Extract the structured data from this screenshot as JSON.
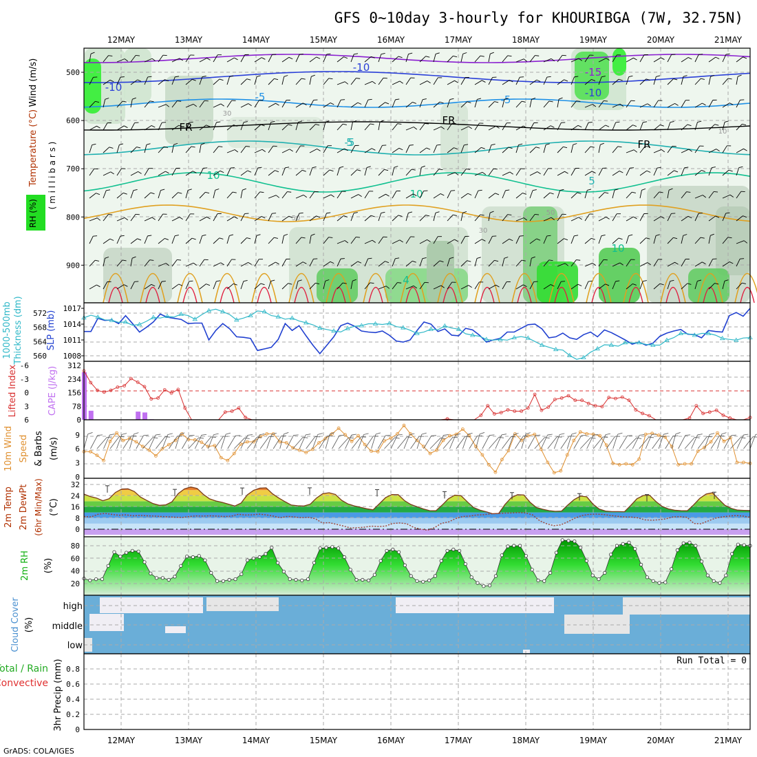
{
  "title": "GFS 0~10day 3-hourly for KHOURIBGA (7W, 32.75N)",
  "footer": "GrADS: COLA/IGES",
  "run_total_label": "Run Total = 0",
  "dates": [
    "12MAY",
    "13MAY",
    "14MAY",
    "15MAY",
    "16MAY",
    "17MAY",
    "18MAY",
    "19MAY",
    "20MAY",
    "21MAY"
  ],
  "colors": {
    "grid": "#aaaaaa",
    "temp_purple": "#8a1fd0",
    "temp_blue": "#2a3fd8",
    "temp_cyan": "#1e90e6",
    "temp_teal": "#20b0b0",
    "temp_green": "#10c090",
    "temp_orange": "#e0a020",
    "temp_red": "#e02040",
    "rh_green": "#22dd22",
    "slp": "#2040d0",
    "thickness": "#30b8c8",
    "lifted": "#d83030",
    "cape": "#c070f0",
    "wind": "#e09030",
    "dew": "#a04030",
    "rh2m": "#10b010",
    "cloud": "#6aaed8"
  },
  "panel_labels": {
    "upper": {
      "wind": "Wind (m/s)",
      "temp": "Temperature (°C)",
      "rh": "RH (%)",
      "pressure": "( m i l l i b a r s )"
    },
    "slp": {
      "thickness1": "1000-500mb",
      "thickness2": "Thickness (dm)",
      "slp": "SLP (mb)"
    },
    "cape": {
      "lifted": "Lifted Index",
      "cape": "CAPE (J/kg)"
    },
    "wind10": {
      "l1": "10m Wind",
      "l2": "Speed",
      "l3": "& Barbs",
      "unit": "(m/s)"
    },
    "temp2": {
      "l1": "2m Temp",
      "l2": "2m DewPt",
      "l3": "(6hr Min/Max)",
      "unit": "(°C)"
    },
    "rh2": {
      "l1": "2m RH",
      "unit": "(%)"
    },
    "cloud": {
      "l1": "Cloud Cover",
      "unit": "(%)",
      "high": "high",
      "middle": "middle",
      "low": "low"
    },
    "precip": {
      "l1": "Total / Rain",
      "l2": "Convective",
      "l3": "3hr Precip (mm)"
    }
  },
  "chart_data": [
    {
      "type": "contour",
      "panel": "upper-air",
      "ylabel": "Pressure (millibars)",
      "yticks": [
        500,
        600,
        700,
        800,
        900
      ],
      "contour_labels": [
        "-15",
        "-10",
        "-10",
        "-10",
        "-5",
        "-5",
        "-5",
        "FR",
        "FR",
        "FR",
        "5",
        "5",
        "10",
        "10",
        "10",
        "4",
        "30",
        "30",
        "50",
        "50",
        "10"
      ]
    },
    {
      "type": "line",
      "panel": "slp-thickness",
      "slp": {
        "ylim": [
          1008,
          1017
        ],
        "yticks": [
          1008,
          1011,
          1014,
          1017
        ],
        "values": [
          1012.6,
          1012.6,
          1015.1,
          1014.7,
          1014.8,
          1014.1,
          1015.6,
          1014.1,
          1012.5,
          1013.4,
          1014.4,
          1015.9,
          1015.3,
          1015.1,
          1014.9,
          1014.1,
          1014.2,
          1014.2,
          1011.0,
          1012.8,
          1014.1,
          1013.1,
          1011.6,
          1011.5,
          1011.3,
          1009.0,
          1009.3,
          1009.6,
          1011.1,
          1014.1,
          1012.8,
          1013.7,
          1011.8,
          1010.0,
          1008.4,
          1010.0,
          1011.6,
          1013.7,
          1014.2,
          1013.6,
          1012.7,
          1012.5,
          1012.4,
          1012.7,
          1011.9,
          1010.8,
          1010.6,
          1011.0,
          1012.8,
          1014.4,
          1014.0,
          1012.6,
          1013.1,
          1011.9,
          1011.8,
          1013.2,
          1012.9,
          1011.9,
          1010.6,
          1011.0,
          1011.3,
          1012.5,
          1012.5,
          1013.2,
          1013.9,
          1014.0,
          1013.1,
          1011.4,
          1011.6,
          1012.3,
          1011.4,
          1011.1,
          1012.0,
          1012.5,
          1011.6,
          1012.9,
          1012.4,
          1011.7,
          1011.0,
          1010.2,
          1010.6,
          1010.0,
          1010.4,
          1011.7,
          1012.3,
          1012.7,
          1013.0,
          1012.1,
          1012.0,
          1011.4,
          1012.8,
          1012.6,
          1012.5,
          1015.6,
          1016.2,
          1015.5,
          1017.0
        ]
      },
      "thickness": {
        "ylim": [
          558,
          574
        ],
        "yticks": [
          560,
          564,
          568,
          572
        ],
        "values": [
          570.7,
          571.4,
          570.9,
          570.1,
          570.0,
          569.4,
          569.5,
          568.6,
          568.8,
          569.7,
          570.8,
          570.6,
          571.1,
          570.9,
          571.7,
          571.3,
          570.3,
          571.6,
          572.7,
          573.1,
          572.4,
          571.6,
          570.1,
          570.6,
          571.3,
          572.6,
          572.4,
          571.3,
          571.0,
          570.3,
          570.6,
          569.8,
          569.3,
          568.7,
          567.8,
          567.4,
          567.0,
          566.7,
          567.7,
          568.3,
          568.5,
          569.0,
          569.0,
          568.8,
          569.1,
          568.2,
          567.9,
          567.2,
          566.3,
          566.7,
          567.5,
          567.3,
          568.4,
          567.8,
          567.5,
          566.2,
          565.8,
          565.5,
          564.6,
          564.4,
          564.6,
          564.4,
          565.1,
          565.4,
          565.0,
          564.0,
          563.0,
          562.4,
          561.8,
          561.6,
          560.1,
          559.0,
          559.5,
          561.0,
          562.0,
          563.1,
          563.0,
          562.7,
          563.7,
          563.6,
          563.7,
          563.2,
          563.0,
          563.0,
          564.4,
          565.1,
          566.3,
          566.2,
          565.8,
          566.3,
          566.3,
          565.8,
          564.9,
          564.6,
          564.4,
          565.0,
          565.1
        ]
      }
    },
    {
      "type": "bar+line",
      "panel": "cape-lifted-index",
      "lifted_index": {
        "yticks": [
          -6,
          -3,
          0,
          3,
          6
        ],
        "ylim": [
          -6,
          6
        ],
        "values": [
          -4.8,
          -2.2,
          -0.5,
          -0.1,
          -0.5,
          -1.2,
          -1.5,
          -3.1,
          -2.3,
          -1.3,
          1.4,
          1.2,
          -0.6,
          0.1,
          -0.7,
          3.4,
          6.5,
          6.8,
          6.8,
          6.7,
          6.2,
          4.3,
          4.1,
          3.4,
          5.5,
          6.4,
          6.7,
          6.6,
          6.7,
          6.7,
          6.6,
          6.5,
          6.3,
          6.3,
          6.3,
          6.4,
          6.6,
          6.5,
          6.6,
          6.5,
          6.7,
          6.6,
          6.6,
          6.7,
          6.7,
          6.5,
          6.7,
          6.7,
          6.6,
          6.6,
          6.6,
          6.6,
          6.5,
          6.3,
          5.8,
          6.0,
          6.5,
          6.7,
          6.8,
          5.0,
          2.9,
          4.7,
          4.4,
          3.8,
          4.1,
          4.1,
          3.4,
          0.4,
          3.9,
          3.2,
          1.5,
          1.2,
          0.7,
          1.7,
          1.7,
          2.4,
          2.9,
          3.1,
          1.1,
          1.3,
          1.0,
          1.7,
          3.8,
          4.6,
          5.1,
          6.2,
          6.7,
          6.6,
          6.3,
          6.2,
          5.6,
          2.9,
          4.6,
          4.3,
          3.9,
          5.0,
          5.6,
          6.1,
          6.1,
          5.5
        ]
      },
      "cape": {
        "yticks": [
          0,
          78,
          156,
          234,
          312
        ],
        "ylim": [
          0,
          312
        ],
        "bars": [
          {
            "index": 0,
            "value": 273
          },
          {
            "index": 1,
            "value": 52
          },
          {
            "index": 8,
            "value": 47
          },
          {
            "index": 9,
            "value": 42
          },
          {
            "index": 10,
            "value": 3
          }
        ]
      }
    },
    {
      "type": "line",
      "panel": "10m-wind",
      "ylim": [
        0,
        10
      ],
      "yticks": [
        0,
        3,
        6,
        9
      ],
      "values": [
        5.4,
        5.4,
        4.6,
        3.5,
        7.6,
        9.4,
        7.8,
        8.2,
        7.5,
        6.5,
        5.7,
        4.5,
        6.0,
        6.9,
        7.8,
        9.2,
        8.0,
        7.9,
        7.4,
        6.5,
        6.7,
        4.1,
        3.5,
        5.0,
        7.0,
        7.5,
        7.5,
        8.6,
        9.2,
        9.2,
        7.5,
        7.3,
        6.2,
        5.7,
        5.2,
        5.9,
        7.3,
        8.2,
        9.2,
        10.4,
        9.0,
        7.6,
        8.8,
        6.9,
        5.5,
        5.4,
        7.7,
        8.3,
        9.2,
        11.0,
        9.2,
        7.8,
        6.5,
        5.0,
        5.7,
        7.8,
        8.8,
        9.1,
        10.2,
        8.8,
        6.5,
        4.7,
        2.6,
        1.0,
        3.7,
        5.6,
        9.2,
        7.8,
        8.8,
        9.1,
        5.9,
        3.1,
        0.9,
        1.3,
        4.7,
        7.8,
        9.6,
        9.2,
        9.1,
        8.8,
        6.8,
        2.9,
        2.6,
        2.8,
        2.6,
        3.8,
        9.1,
        9.3,
        8.9,
        8.5,
        6.5,
        2.6,
        2.8,
        2.8,
        5.5,
        6.3,
        7.5,
        9.4,
        7.6,
        8.4,
        3.1,
        3.1,
        2.9
      ]
    },
    {
      "type": "area",
      "panel": "2m-temp-dewpt",
      "ylim": [
        -4,
        33
      ],
      "yticks": [
        0,
        8,
        16,
        24,
        32
      ],
      "temp": [
        25.1,
        23.4,
        22.3,
        20.4,
        21.8,
        26.3,
        28.7,
        28.9,
        27.0,
        23.0,
        20.6,
        18.3,
        17.1,
        17.4,
        19.6,
        25.5,
        28.9,
        30.2,
        29.2,
        24.9,
        21.7,
        20.2,
        19.2,
        17.9,
        16.6,
        18.7,
        24.6,
        27.8,
        29.4,
        29.6,
        25.3,
        22.3,
        19.7,
        17.3,
        16.8,
        16.6,
        17.9,
        22.3,
        25.4,
        26.1,
        24.9,
        20.7,
        18.1,
        16.7,
        15.7,
        14.6,
        13.9,
        18.2,
        22.6,
        24.8,
        24.7,
        20.5,
        17.7,
        16.1,
        14.5,
        13.3,
        13.2,
        17.3,
        21.8,
        24.3,
        24.0,
        19.6,
        15.5,
        13.7,
        12.5,
        11.1,
        11.3,
        17.7,
        22.6,
        24.7,
        24.5,
        19.2,
        15.5,
        14.3,
        13.3,
        12.8,
        13.0,
        17.4,
        21.2,
        23.7,
        23.2,
        17.9,
        14.4,
        13.0,
        12.6,
        12.6,
        12.5,
        17.0,
        21.8,
        24.1,
        24.3,
        19.9,
        16.3,
        14.5,
        13.6,
        13.3,
        13.2,
        17.4,
        22.1,
        25.2,
        26.1,
        21.5,
        17.1,
        14.9,
        13.7,
        13.5,
        13.4
      ],
      "dewpoint": [
        9.1,
        8.8,
        10.7,
        11.3,
        10.6,
        10.0,
        10.3,
        9.6,
        9.9,
        9.6,
        9.4,
        9.1,
        8.9,
        8.6,
        8.4,
        9.1,
        9.5,
        9.4,
        9.6,
        9.4,
        9.1,
        9.3,
        10.7,
        10.2,
        10.3,
        10.8,
        10.3,
        9.4,
        8.2,
        9.2,
        8.8,
        8.2,
        8.5,
        7.5,
        4.5,
        4.7,
        3.5,
        2.3,
        0.9,
        1.1,
        1.5,
        2.2,
        1.9,
        2.2,
        4.1,
        4.5,
        4.0,
        1.4,
        0.1,
        -0.7,
        1.2,
        4.3,
        5.2,
        7.6,
        9.1,
        9.4,
        10.2,
        10.4,
        11.0,
        11.2,
        11.5,
        11.6,
        11.9,
        11.6,
        10.2,
        6.0,
        3.9,
        2.5,
        3.1,
        5.3,
        7.9,
        9.8,
        10.6,
        10.8,
        10.6,
        9.9,
        9.3,
        8.8,
        8.7,
        8.1,
        6.7,
        6.4,
        6.8,
        7.4,
        8.8,
        9.0,
        8.5,
        4.1,
        3.9,
        5.9,
        7.8,
        8.8,
        9.4,
        9.8,
        9.4,
        8.5
      ],
      "max_6hr": [
        31.1,
        28.5,
        29.5,
        29.6,
        28.3,
        26.9,
        26.2,
        25.5,
        24.8,
        26.5
      ],
      "min_6hr": [
        16.6,
        16.7,
        13.4,
        13.4,
        12.8,
        11.0,
        12.4,
        11.9,
        12.3,
        13.0
      ]
    },
    {
      "type": "area",
      "panel": "2m-rh",
      "ylim": [
        0,
        100
      ],
      "yticks": [
        20,
        40,
        60,
        80
      ],
      "values": [
        28,
        25,
        27,
        27,
        48,
        70,
        63,
        69,
        72,
        71,
        54,
        36,
        29,
        29,
        26,
        31,
        48,
        63,
        62,
        64,
        57,
        37,
        24,
        24,
        26,
        27,
        35,
        57,
        60,
        62,
        67,
        77,
        53,
        39,
        27,
        26,
        25,
        27,
        53,
        76,
        77,
        78,
        76,
        62,
        42,
        26,
        26,
        25,
        34,
        56,
        72,
        74,
        70,
        49,
        32,
        24,
        23,
        25,
        32,
        56,
        72,
        74,
        72,
        51,
        30,
        21,
        16,
        17,
        32,
        65,
        79,
        80,
        80,
        64,
        42,
        25,
        24,
        37,
        69,
        89,
        88,
        87,
        77,
        56,
        33,
        27,
        37,
        66,
        80,
        83,
        85,
        75,
        50,
        30,
        24,
        21,
        22,
        43,
        73,
        84,
        85,
        80,
        55,
        33,
        24,
        21,
        33,
        67,
        82,
        81,
        80
      ]
    },
    {
      "type": "heatmap",
      "panel": "cloud-cover",
      "levels": [
        "high",
        "middle",
        "low"
      ]
    },
    {
      "type": "bar",
      "panel": "precip",
      "ylim": [
        0,
        1
      ],
      "yticks": [
        0,
        0.2,
        0.4,
        0.6,
        0.8
      ],
      "values": []
    }
  ]
}
